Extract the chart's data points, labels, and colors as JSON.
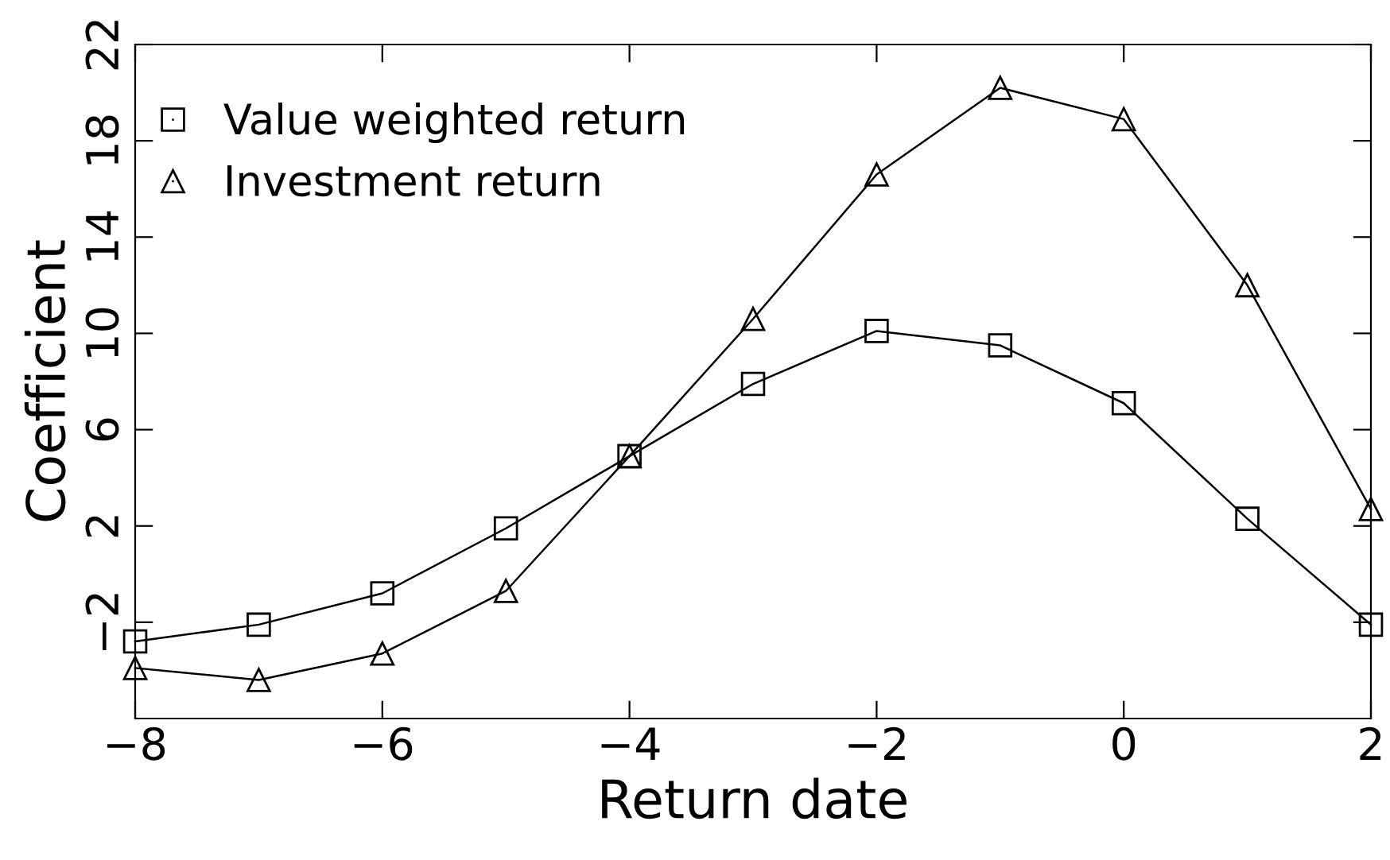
{
  "chart_data": {
    "type": "line",
    "xlabel": "Return date",
    "ylabel": "Coefficient",
    "x": [
      -8,
      -7,
      -6,
      -5,
      -4,
      -3,
      -2,
      -1,
      0,
      1,
      2
    ],
    "series": [
      {
        "name": "Value weighted return",
        "color": "#000000",
        "marker": "square",
        "values": [
          -2.8,
          -2.1,
          -0.8,
          1.9,
          4.9,
          7.9,
          10.1,
          9.5,
          7.1,
          2.3,
          -2.1
        ]
      },
      {
        "name": "Investment return",
        "color": "#000000",
        "marker": "triangle",
        "values": [
          -3.9,
          -4.4,
          -3.3,
          -0.7,
          4.9,
          10.6,
          16.6,
          20.2,
          18.9,
          12.0,
          2.7
        ]
      }
    ],
    "xlim": [
      -8,
      2
    ],
    "xticks": [
      {
        "value": -8,
        "label": "−8"
      },
      {
        "value": -6,
        "label": "−6"
      },
      {
        "value": -4,
        "label": "−4"
      },
      {
        "value": -2,
        "label": "−2"
      },
      0,
      2
    ],
    "ylim": [
      -6,
      22
    ],
    "yticks": [
      {
        "value": -2,
        "label": "−2"
      },
      2,
      6,
      10,
      14,
      18,
      22
    ],
    "grid": false,
    "legend": "top left",
    "line_style": "solid"
  }
}
